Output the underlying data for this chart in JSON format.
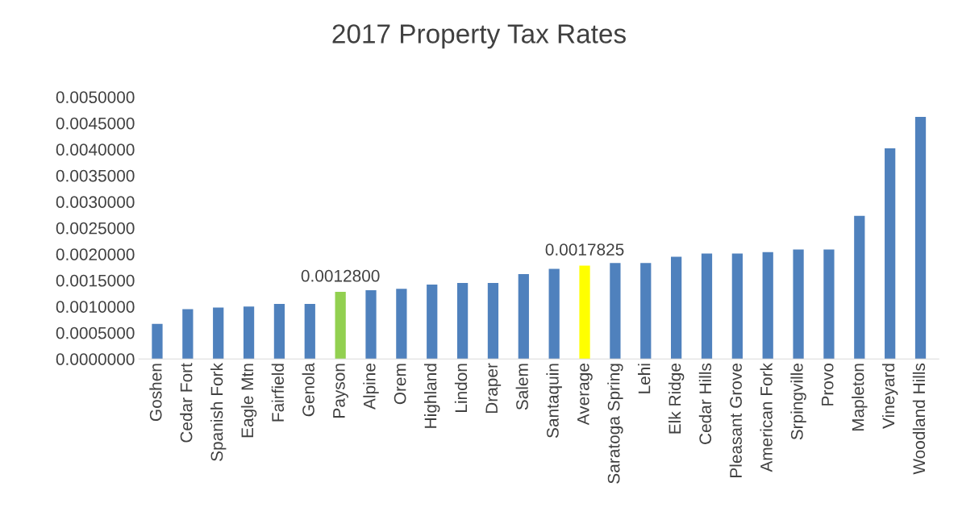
{
  "chart_data": {
    "type": "bar",
    "title": "2017 Property Tax Rates",
    "categories": [
      "Goshen",
      "Cedar Fort",
      "Spanish Fork",
      "Eagle Mtn",
      "Fairfield",
      "Genola",
      "Payson",
      "Alpine",
      "Orem",
      "Highland",
      "Lindon",
      "Draper",
      "Salem",
      "Santaquin",
      "Average",
      "Saratoga Spring",
      "Lehi",
      "Elk Ridge",
      "Cedar Hills",
      "Pleasant Grove",
      "American Fork",
      "Srpingville",
      "Provo",
      "Mapleton",
      "Vineyard",
      "Woodland Hills"
    ],
    "values": [
      0.00067,
      0.00095,
      0.00098,
      0.001,
      0.00105,
      0.00105,
      0.00128,
      0.00131,
      0.00134,
      0.00142,
      0.00145,
      0.00145,
      0.00162,
      0.00172,
      0.0017825,
      0.00183,
      0.00183,
      0.00195,
      0.00201,
      0.00201,
      0.00204,
      0.00209,
      0.00209,
      0.00273,
      0.00402,
      0.00462
    ],
    "value_labels": [
      null,
      null,
      null,
      null,
      null,
      null,
      "0.0012800",
      null,
      null,
      null,
      null,
      null,
      null,
      null,
      "0.0017825",
      null,
      null,
      null,
      null,
      null,
      null,
      null,
      null,
      null,
      null,
      null
    ],
    "colors": [
      "#4f81bd",
      "#4f81bd",
      "#4f81bd",
      "#4f81bd",
      "#4f81bd",
      "#4f81bd",
      "#92d050",
      "#4f81bd",
      "#4f81bd",
      "#4f81bd",
      "#4f81bd",
      "#4f81bd",
      "#4f81bd",
      "#4f81bd",
      "#ffff00",
      "#4f81bd",
      "#4f81bd",
      "#4f81bd",
      "#4f81bd",
      "#4f81bd",
      "#4f81bd",
      "#4f81bd",
      "#4f81bd",
      "#4f81bd",
      "#4f81bd",
      "#4f81bd"
    ],
    "ylim": [
      0,
      0.005
    ],
    "yticks": [
      {
        "value": 0,
        "label": "0.0000000"
      },
      {
        "value": 0.0005,
        "label": "0.0005000"
      },
      {
        "value": 0.001,
        "label": "0.0010000"
      },
      {
        "value": 0.0015,
        "label": "0.0015000"
      },
      {
        "value": 0.002,
        "label": "0.0020000"
      },
      {
        "value": 0.0025,
        "label": "0.0025000"
      },
      {
        "value": 0.003,
        "label": "0.0030000"
      },
      {
        "value": 0.0035,
        "label": "0.0035000"
      },
      {
        "value": 0.004,
        "label": "0.0040000"
      },
      {
        "value": 0.0045,
        "label": "0.0045000"
      },
      {
        "value": 0.005,
        "label": "0.0050000"
      }
    ],
    "grid": false
  }
}
